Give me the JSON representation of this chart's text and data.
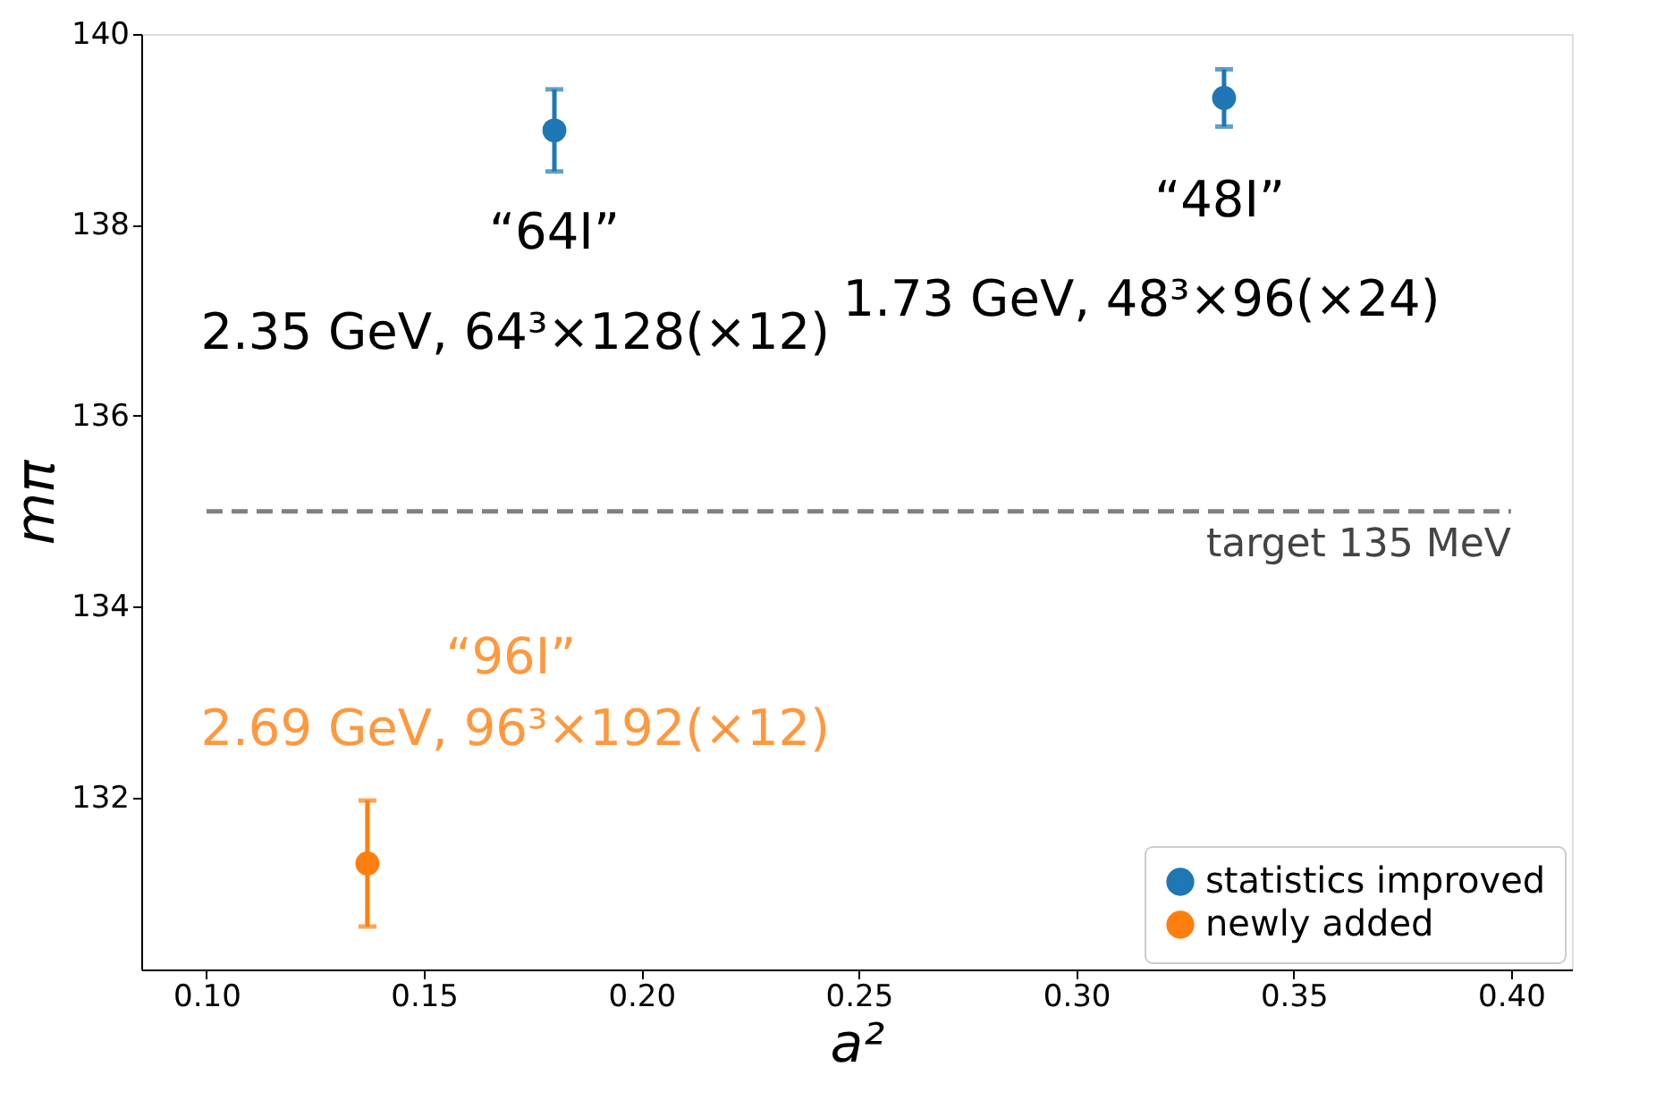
{
  "chart_data": {
    "type": "scatter",
    "xlabel": "a²",
    "ylabel": "mπ",
    "xlim": [
      0.085,
      0.414
    ],
    "ylim": [
      130.2,
      140
    ],
    "xticks": [
      {
        "value": 0.1,
        "label": "0.10"
      },
      0.15,
      {
        "value": 0.2,
        "label": "0.20"
      },
      0.25,
      {
        "value": 0.3,
        "label": "0.30"
      },
      0.35,
      {
        "value": 0.4,
        "label": "0.40"
      }
    ],
    "yticks": [
      132,
      134,
      136,
      138,
      140
    ],
    "series": [
      {
        "name": "statistics improved",
        "color": "#1f77b4",
        "x": [
          0.18,
          0.334
        ],
        "values": [
          138.99,
          139.33
        ],
        "errors": [
          0.43,
          0.3
        ]
      },
      {
        "name": "newly added",
        "color": "#ff7f0e",
        "x": [
          0.137
        ],
        "values": [
          131.31
        ],
        "errors": [
          0.66
        ]
      }
    ],
    "ref_lines": [
      {
        "axis": "y",
        "value": 135,
        "label": "target 135 MeV",
        "color": "#808080",
        "line_style": "dashed"
      }
    ],
    "annotations": [
      "“64I”",
      "2.35 GeV, 64³×128(×12)",
      "“48I”",
      "1.73 GeV, 48³×96(×24)",
      "“96I”",
      "2.69 GeV, 96³×192(×12)"
    ],
    "marker": "circle",
    "legend": "bottom right",
    "grid": false
  }
}
